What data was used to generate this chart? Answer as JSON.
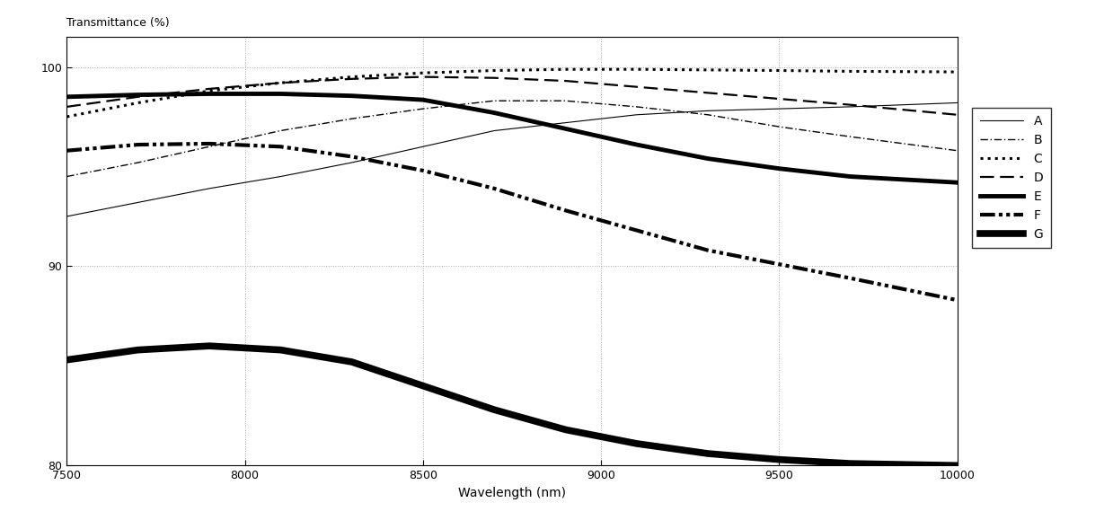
{
  "xlabel": "Wavelength (nm)",
  "ylabel": "Transmittance (%)",
  "xlim": [
    7500,
    10000
  ],
  "ylim": [
    80,
    101.5
  ],
  "yticks": [
    80,
    90,
    100
  ],
  "xticks": [
    7500,
    8000,
    8500,
    9000,
    9500,
    10000
  ],
  "grid_color": "#aaaaaa",
  "bg_color": "#ffffff",
  "legend_labels": [
    "A",
    "B",
    "C",
    "D",
    "E",
    "F",
    "G"
  ],
  "curves": {
    "A": {
      "x": [
        7500,
        7700,
        7900,
        8100,
        8300,
        8500,
        8700,
        8900,
        9100,
        9300,
        9500,
        9700,
        10000
      ],
      "y": [
        92.5,
        93.2,
        93.9,
        94.5,
        95.2,
        96.0,
        96.8,
        97.2,
        97.6,
        97.8,
        97.9,
        98.0,
        98.2
      ]
    },
    "B": {
      "x": [
        7500,
        7700,
        7900,
        8100,
        8300,
        8500,
        8700,
        8900,
        9100,
        9300,
        9500,
        9700,
        10000
      ],
      "y": [
        94.5,
        95.2,
        96.0,
        96.8,
        97.4,
        97.9,
        98.3,
        98.3,
        98.0,
        97.6,
        97.0,
        96.5,
        95.8
      ]
    },
    "C": {
      "x": [
        7500,
        7700,
        7900,
        8100,
        8300,
        8500,
        8700,
        8900,
        9100,
        9300,
        9500,
        9700,
        10000
      ],
      "y": [
        97.5,
        98.2,
        98.8,
        99.2,
        99.5,
        99.7,
        99.82,
        99.88,
        99.88,
        99.85,
        99.82,
        99.78,
        99.75
      ]
    },
    "D": {
      "x": [
        7500,
        7700,
        7900,
        8100,
        8300,
        8500,
        8700,
        8900,
        9100,
        9300,
        9500,
        9700,
        10000
      ],
      "y": [
        98.0,
        98.5,
        98.9,
        99.2,
        99.4,
        99.5,
        99.45,
        99.3,
        99.0,
        98.7,
        98.4,
        98.1,
        97.6
      ]
    },
    "E": {
      "x": [
        7500,
        7700,
        7900,
        8100,
        8300,
        8500,
        8700,
        8900,
        9100,
        9300,
        9500,
        9700,
        10000
      ],
      "y": [
        98.5,
        98.6,
        98.65,
        98.65,
        98.55,
        98.35,
        97.7,
        96.9,
        96.1,
        95.4,
        94.9,
        94.5,
        94.2
      ]
    },
    "F": {
      "x": [
        7500,
        7700,
        7900,
        8100,
        8300,
        8500,
        8700,
        8900,
        9100,
        9300,
        9500,
        9700,
        10000
      ],
      "y": [
        95.8,
        96.1,
        96.15,
        96.0,
        95.5,
        94.8,
        93.9,
        92.8,
        91.8,
        90.8,
        90.1,
        89.4,
        88.3
      ]
    },
    "G": {
      "x": [
        7500,
        7700,
        7900,
        8100,
        8300,
        8500,
        8700,
        8900,
        9100,
        9300,
        9500,
        9700,
        10000
      ],
      "y": [
        85.3,
        85.8,
        86.0,
        85.8,
        85.2,
        84.0,
        82.8,
        81.8,
        81.1,
        80.6,
        80.3,
        80.1,
        80.0
      ]
    }
  }
}
